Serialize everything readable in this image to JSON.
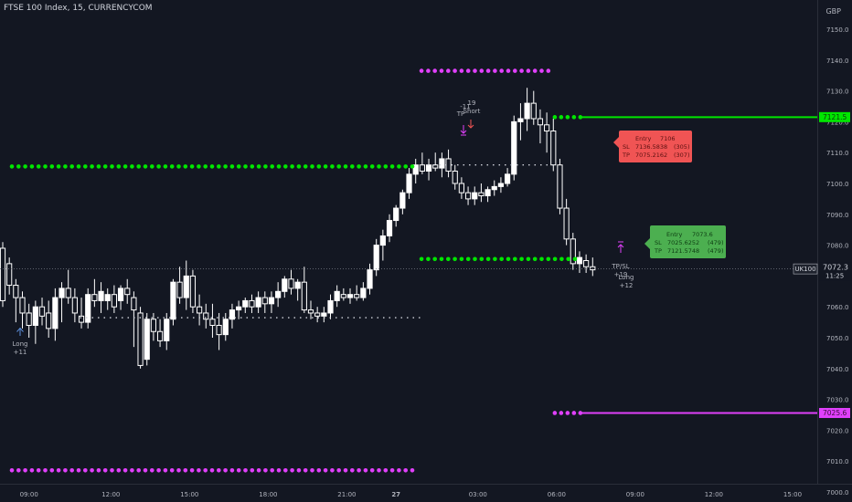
{
  "header": {
    "symbol_title": "FTSE 100 Index, 15, CURRENCYCOM"
  },
  "price_axis": {
    "currency": "GBP",
    "ticks": [
      "7150.0",
      "7140.0",
      "7130.0",
      "7120.0",
      "7110.0",
      "7100.0",
      "7090.0",
      "7080.0",
      "7070.0",
      "7060.0",
      "7050.0",
      "7040.0",
      "7030.0",
      "7020.0",
      "7010.0",
      "7000.0"
    ],
    "tick_values": [
      7150,
      7140,
      7130,
      7120,
      7110,
      7100,
      7090,
      7080,
      7070,
      7060,
      7050,
      7040,
      7030,
      7020,
      7010,
      7000
    ],
    "current_symbol": "UK100",
    "current_price": "7072.3",
    "countdown": "11:25",
    "green_level_label": "7121.5",
    "magenta_level_label": "7025.6"
  },
  "time_axis": {
    "labels": [
      "09:00",
      "12:00",
      "15:00",
      "18:00",
      "21:00",
      "27",
      "03:00",
      "06:00",
      "09:00",
      "12:00",
      "15:00"
    ]
  },
  "colors": {
    "background": "#131722",
    "candle_up": "#ffffff",
    "candle_down": "#ffffff",
    "green_dots": "#00e600",
    "magenta_dots": "#e040fb",
    "current_price_line": "#787b86",
    "short_box": "#f05454",
    "long_box": "#4caf50"
  },
  "annotations": {
    "long1": {
      "label": "Long",
      "qty": "+11"
    },
    "short": {
      "top": "-11",
      "top2": "19",
      "mid": "TP",
      "label": "Short"
    },
    "long2": {
      "l1": "TP/SL",
      "l2": "+19",
      "l3": "Long",
      "l4": "+12"
    },
    "short_box": {
      "r1a": "Entry",
      "r1b": "7106",
      "r2a": "SL",
      "r2b": "7136.5838",
      "r2c": "(305)",
      "r3a": "TP",
      "r3b": "7075.2162",
      "r3c": "(307)"
    },
    "long_box": {
      "r1a": "Entry",
      "r1b": "7073.6",
      "r2a": "SL",
      "r2b": "7025.6252",
      "r2c": "(479)",
      "r3a": "TP",
      "r3b": "7121.5748",
      "r3c": "(479)"
    }
  },
  "chart_data": {
    "type": "candlestick",
    "title": "FTSE 100 Index, 15, CURRENCYCOM",
    "ylabel": "GBP",
    "ylim": [
      6993,
      7155
    ],
    "x_tick_labels": [
      "09:00",
      "12:00",
      "15:00",
      "18:00",
      "21:00",
      "27",
      "03:00",
      "06:00",
      "09:00",
      "12:00",
      "15:00"
    ],
    "x_tick_bars": [
      4,
      16.5,
      28.5,
      40.5,
      52.5,
      60,
      72.5,
      84.5,
      96.5,
      108.5,
      120.5
    ],
    "ohlc": [
      [
        7079,
        7081,
        7060,
        7062
      ],
      [
        7074,
        7076,
        7064,
        7067
      ],
      [
        7067,
        7069,
        7055,
        7063
      ],
      [
        7063,
        7065,
        7053,
        7058
      ],
      [
        7058,
        7061,
        7050,
        7054
      ],
      [
        7054,
        7062,
        7048,
        7060
      ],
      [
        7060,
        7063,
        7054,
        7057
      ],
      [
        7058,
        7062,
        7050,
        7053
      ],
      [
        7053,
        7066,
        7049,
        7063
      ],
      [
        7063,
        7068,
        7055,
        7066
      ],
      [
        7066,
        7072,
        7061,
        7063
      ],
      [
        7063,
        7066,
        7055,
        7058
      ],
      [
        7057,
        7063,
        7053,
        7055
      ],
      [
        7055,
        7066,
        7053,
        7064
      ],
      [
        7064,
        7069,
        7060,
        7062
      ],
      [
        7062,
        7068,
        7058,
        7065
      ],
      [
        7062,
        7066,
        7059,
        7064
      ],
      [
        7064,
        7067,
        7058,
        7060
      ],
      [
        7062,
        7067,
        7059,
        7066
      ],
      [
        7066,
        7069,
        7061,
        7064
      ],
      [
        7063,
        7065,
        7047,
        7059
      ],
      [
        7058,
        7060,
        7040,
        7041
      ],
      [
        7043,
        7058,
        7041,
        7056
      ],
      [
        7056,
        7058,
        7049,
        7052
      ],
      [
        7052,
        7056,
        7047,
        7049
      ],
      [
        7049,
        7058,
        7046,
        7056
      ],
      [
        7056,
        7069,
        7054,
        7068
      ],
      [
        7068,
        7073,
        7061,
        7063
      ],
      [
        7063,
        7075,
        7059,
        7070
      ],
      [
        7070,
        7072,
        7058,
        7060
      ],
      [
        7060,
        7064,
        7054,
        7058
      ],
      [
        7058,
        7061,
        7053,
        7056
      ],
      [
        7056,
        7061,
        7050,
        7054
      ],
      [
        7054,
        7058,
        7046,
        7051
      ],
      [
        7051,
        7058,
        7049,
        7056
      ],
      [
        7056,
        7061,
        7053,
        7059
      ],
      [
        7059,
        7062,
        7056,
        7060
      ],
      [
        7060,
        7063,
        7058,
        7062
      ],
      [
        7062,
        7064,
        7058,
        7060
      ],
      [
        7060,
        7065,
        7058,
        7063
      ],
      [
        7063,
        7065,
        7058,
        7061
      ],
      [
        7061,
        7065,
        7058,
        7063
      ],
      [
        7063,
        7068,
        7060,
        7065
      ],
      [
        7065,
        7070,
        7063,
        7069
      ],
      [
        7069,
        7072,
        7064,
        7066
      ],
      [
        7066,
        7069,
        7062,
        7068
      ],
      [
        7068,
        7073,
        7058,
        7059
      ],
      [
        7059,
        7062,
        7056,
        7058
      ],
      [
        7058,
        7060,
        7055,
        7057
      ],
      [
        7057,
        7060,
        7055,
        7058
      ],
      [
        7058,
        7064,
        7056,
        7062
      ],
      [
        7062,
        7067,
        7060,
        7065
      ],
      [
        7064,
        7066,
        7062,
        7063
      ],
      [
        7063,
        7066,
        7061,
        7064
      ],
      [
        7064,
        7067,
        7062,
        7063
      ],
      [
        7063,
        7068,
        7062,
        7066
      ],
      [
        7066,
        7074,
        7064,
        7072
      ],
      [
        7072,
        7082,
        7070,
        7080
      ],
      [
        7080,
        7085,
        7075,
        7083
      ],
      [
        7083,
        7090,
        7081,
        7088
      ],
      [
        7088,
        7093,
        7086,
        7092
      ],
      [
        7092,
        7098,
        7090,
        7097
      ],
      [
        7097,
        7105,
        7095,
        7103
      ],
      [
        7103,
        7108,
        7100,
        7106
      ],
      [
        7106,
        7110,
        7103,
        7104
      ],
      [
        7104,
        7108,
        7101,
        7106
      ],
      [
        7106,
        7110,
        7104,
        7105
      ],
      [
        7105,
        7110,
        7102,
        7108
      ],
      [
        7108,
        7111,
        7102,
        7104
      ],
      [
        7104,
        7106,
        7098,
        7100
      ],
      [
        7100,
        7102,
        7095,
        7097
      ],
      [
        7097,
        7099,
        7093,
        7095
      ],
      [
        7095,
        7099,
        7093,
        7097
      ],
      [
        7097,
        7100,
        7094,
        7096
      ],
      [
        7096,
        7099,
        7094,
        7098
      ],
      [
        7098,
        7101,
        7096,
        7099
      ],
      [
        7099,
        7102,
        7097,
        7100
      ],
      [
        7100,
        7105,
        7099,
        7103
      ],
      [
        7103,
        7122,
        7101,
        7120
      ],
      [
        7120,
        7126,
        7114,
        7121
      ],
      [
        7121,
        7131,
        7117,
        7126
      ],
      [
        7126,
        7130,
        7119,
        7121
      ],
      [
        7121,
        7124,
        7113,
        7119
      ],
      [
        7119,
        7123,
        7110,
        7117
      ],
      [
        7117,
        7121,
        7104,
        7106
      ],
      [
        7106,
        7108,
        7090,
        7092
      ],
      [
        7092,
        7095,
        7080,
        7082
      ],
      [
        7082,
        7084,
        7072,
        7074
      ],
      [
        7074,
        7078,
        7071,
        7076
      ],
      [
        7075,
        7077,
        7071,
        7073
      ],
      [
        7073,
        7076,
        7070,
        7072
      ]
    ],
    "levels": [
      {
        "name": "green-upper",
        "value": 7105.5,
        "x_start_bar": 0,
        "x_end_bar": 63.5
      },
      {
        "name": "magenta-upper",
        "value": 7136.5,
        "x_start_bar": 62.5,
        "x_end_bar": 83.5
      },
      {
        "name": "green-right",
        "value": 7121.5,
        "x_start_bar": 84.5,
        "x_end_bar": 88
      },
      {
        "name": "green-mid",
        "value": 7075.5,
        "x_start_bar": 62.5,
        "x_end_bar": 88
      },
      {
        "name": "magenta-right",
        "value": 7025.6,
        "x_start_bar": 84.5,
        "x_end_bar": 88
      },
      {
        "name": "magenta-lower",
        "value": 7007,
        "x_start_bar": 0,
        "x_end_bar": 63.5
      }
    ],
    "white_dotted_levels": [
      {
        "value": 7056.5,
        "x_start_bar": 9,
        "x_end_bar": 62.5
      },
      {
        "value": 7106,
        "x_start_bar": 62,
        "x_end_bar": 83
      }
    ]
  }
}
